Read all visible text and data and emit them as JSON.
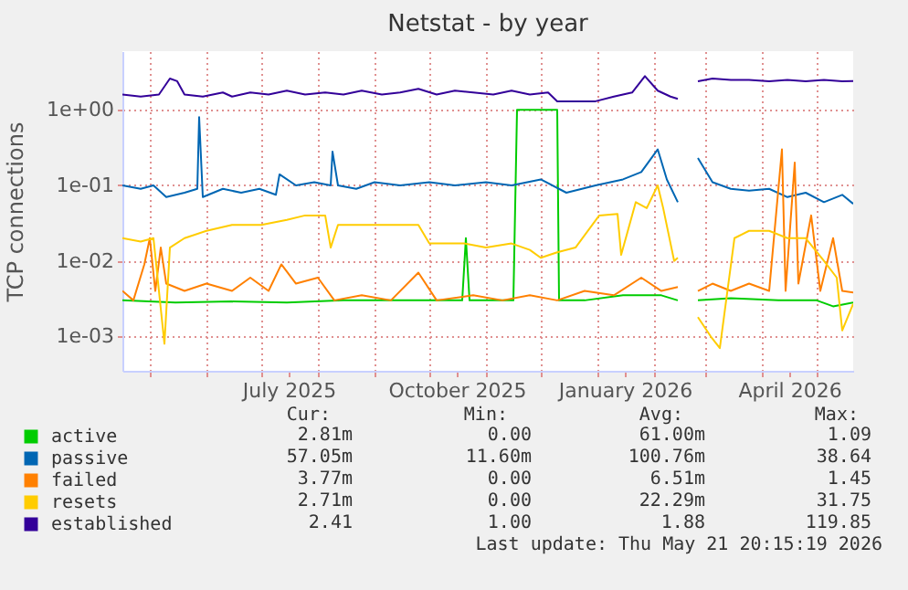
{
  "chart_data": {
    "type": "line",
    "title": "Netstat - by year",
    "ylabel": "TCP connections",
    "log": "y",
    "grid": true,
    "legend": "bottom left",
    "marker": "none",
    "line_style": "solid",
    "xlim": [
      "2025-04-16",
      "2026-05-21"
    ],
    "xticks": [
      {
        "value": "2025-05-01",
        "label": null
      },
      {
        "value": "2025-06-01",
        "label": null
      },
      {
        "value": "2025-07-01",
        "label": null
      },
      {
        "value": "2025-07-16",
        "label": "July 2025"
      },
      {
        "value": "2025-08-01",
        "label": null
      },
      {
        "value": "2025-09-01",
        "label": null
      },
      {
        "value": "2025-10-01",
        "label": null
      },
      {
        "value": "2025-10-16",
        "label": "October 2025"
      },
      {
        "value": "2025-11-01",
        "label": null
      },
      {
        "value": "2025-12-01",
        "label": null
      },
      {
        "value": "2026-01-01",
        "label": null
      },
      {
        "value": "2026-01-16",
        "label": "January 2026"
      },
      {
        "value": "2026-02-01",
        "label": null
      },
      {
        "value": "2026-03-01",
        "label": null
      },
      {
        "value": "2026-04-01",
        "label": null
      },
      {
        "value": "2026-04-16",
        "label": "April 2026"
      },
      {
        "value": "2026-05-01",
        "label": null
      }
    ],
    "ylim": [
      0.00035,
      6
    ],
    "yticks": [
      {
        "value": 0.001,
        "label": "1e-03"
      },
      {
        "value": 0.01,
        "label": "1e-02"
      },
      {
        "value": 0.1,
        "label": "1e-01"
      },
      {
        "value": 1,
        "label": "1e+00"
      }
    ],
    "series": [
      {
        "name": "active",
        "color": "#00cc00",
        "x": [
          "2025-04-16",
          "2025-05-15",
          "2025-06-15",
          "2025-07-15",
          "2025-08-15",
          "2025-09-10",
          "2025-10-19",
          "2025-10-21",
          "2025-10-23",
          "2025-11-16",
          "2025-11-18",
          "2025-12-10",
          "2025-12-11",
          "2025-12-25",
          "2026-01-15",
          "2026-02-05",
          "2026-02-14",
          "2026-02-20",
          "2026-02-25",
          "2026-03-15",
          "2026-04-10",
          "2026-05-01",
          "2026-05-10",
          "2026-05-21"
        ],
        "values": [
          0.003,
          0.0028,
          0.0029,
          0.0028,
          0.003,
          0.003,
          0.003,
          0.02,
          0.003,
          0.003,
          1.0,
          1.0,
          0.003,
          0.003,
          0.0035,
          0.0035,
          0.003,
          null,
          0.003,
          0.0032,
          0.003,
          0.003,
          0.0025,
          0.0028
        ]
      },
      {
        "name": "passive",
        "color": "#0066b3",
        "x": [
          "2025-04-16",
          "2025-04-26",
          "2025-05-03",
          "2025-05-10",
          "2025-05-20",
          "2025-05-27",
          "2025-05-28",
          "2025-05-30",
          "2025-06-10",
          "2025-06-20",
          "2025-06-30",
          "2025-07-09",
          "2025-07-11",
          "2025-07-20",
          "2025-07-30",
          "2025-08-08",
          "2025-08-09",
          "2025-08-12",
          "2025-08-22",
          "2025-09-01",
          "2025-09-15",
          "2025-10-01",
          "2025-10-15",
          "2025-11-01",
          "2025-11-15",
          "2025-12-01",
          "2025-12-15",
          "2025-12-31",
          "2026-01-15",
          "2026-01-25",
          "2026-02-03",
          "2026-02-08",
          "2026-02-14",
          "2026-02-20",
          "2026-02-25",
          "2026-03-05",
          "2026-03-15",
          "2026-03-25",
          "2026-04-05",
          "2026-04-15",
          "2026-04-25",
          "2026-05-05",
          "2026-05-15",
          "2026-05-21"
        ],
        "values": [
          0.1,
          0.09,
          0.1,
          0.07,
          0.08,
          0.09,
          0.8,
          0.07,
          0.09,
          0.08,
          0.09,
          0.075,
          0.14,
          0.1,
          0.11,
          0.1,
          0.28,
          0.1,
          0.09,
          0.11,
          0.1,
          0.11,
          0.1,
          0.11,
          0.1,
          0.12,
          0.08,
          0.1,
          0.12,
          0.15,
          0.3,
          0.12,
          0.06,
          null,
          0.23,
          0.11,
          0.09,
          0.085,
          0.09,
          0.07,
          0.08,
          0.06,
          0.075,
          0.057
        ]
      },
      {
        "name": "failed",
        "color": "#ff8000",
        "x": [
          "2025-04-16",
          "2025-04-22",
          "2025-04-28",
          "2025-05-01",
          "2025-05-04",
          "2025-05-07",
          "2025-05-10",
          "2025-05-20",
          "2025-06-01",
          "2025-06-15",
          "2025-06-25",
          "2025-07-05",
          "2025-07-12",
          "2025-07-20",
          "2025-08-01",
          "2025-08-10",
          "2025-08-25",
          "2025-09-10",
          "2025-09-25",
          "2025-10-05",
          "2025-10-25",
          "2025-11-10",
          "2025-11-25",
          "2025-12-10",
          "2025-12-25",
          "2026-01-10",
          "2026-01-25",
          "2026-02-05",
          "2026-02-14",
          "2026-02-20",
          "2026-02-25",
          "2026-03-05",
          "2026-03-15",
          "2026-03-25",
          "2026-04-05",
          "2026-04-12",
          "2026-04-14",
          "2026-04-19",
          "2026-04-21",
          "2026-04-28",
          "2026-05-03",
          "2026-05-10",
          "2026-05-15",
          "2026-05-21"
        ],
        "values": [
          0.004,
          0.003,
          0.009,
          0.02,
          0.004,
          0.015,
          0.005,
          0.004,
          0.005,
          0.004,
          0.006,
          0.004,
          0.009,
          0.005,
          0.006,
          0.003,
          0.0035,
          0.003,
          0.007,
          0.003,
          0.0035,
          0.003,
          0.0035,
          0.003,
          0.004,
          0.0035,
          0.006,
          0.004,
          0.0045,
          null,
          0.004,
          0.005,
          0.004,
          0.005,
          0.004,
          0.3,
          0.004,
          0.2,
          0.005,
          0.04,
          0.004,
          0.02,
          0.004,
          0.0038
        ]
      },
      {
        "name": "resets",
        "color": "#ffcc00",
        "x": [
          "2025-04-16",
          "2025-04-26",
          "2025-05-03",
          "2025-05-09",
          "2025-05-12",
          "2025-05-20",
          "2025-06-01",
          "2025-06-15",
          "2025-07-01",
          "2025-07-15",
          "2025-07-25",
          "2025-08-05",
          "2025-08-08",
          "2025-08-12",
          "2025-08-25",
          "2025-09-10",
          "2025-09-25",
          "2025-10-01",
          "2025-10-20",
          "2025-11-01",
          "2025-11-15",
          "2025-11-25",
          "2025-12-01",
          "2025-12-10",
          "2025-12-20",
          "2026-01-02",
          "2026-01-12",
          "2026-01-14",
          "2026-01-22",
          "2026-01-28",
          "2026-02-03",
          "2026-02-06",
          "2026-02-12",
          "2026-02-14",
          "2026-02-20",
          "2026-02-25",
          "2026-03-04",
          "2026-03-09",
          "2026-03-17",
          "2026-03-25",
          "2026-04-05",
          "2026-04-15",
          "2026-04-25",
          "2026-05-05",
          "2026-05-12",
          "2026-05-15",
          "2026-05-21"
        ],
        "values": [
          0.02,
          0.018,
          0.02,
          0.0008,
          0.015,
          0.02,
          0.025,
          0.03,
          0.03,
          0.035,
          0.04,
          0.04,
          0.015,
          0.03,
          0.03,
          0.03,
          0.03,
          0.017,
          0.017,
          0.015,
          0.017,
          0.014,
          0.011,
          0.013,
          0.015,
          0.04,
          0.042,
          0.012,
          0.06,
          0.05,
          0.1,
          0.05,
          0.01,
          0.011,
          null,
          0.0018,
          0.001,
          0.0007,
          0.02,
          0.025,
          0.025,
          0.02,
          0.02,
          0.01,
          0.006,
          0.0012,
          0.0027
        ]
      },
      {
        "name": "established",
        "color": "#330099",
        "x": [
          "2025-04-16",
          "2025-04-26",
          "2025-05-06",
          "2025-05-12",
          "2025-05-16",
          "2025-05-20",
          "2025-05-30",
          "2025-06-10",
          "2025-06-15",
          "2025-06-25",
          "2025-07-05",
          "2025-07-15",
          "2025-07-25",
          "2025-08-05",
          "2025-08-15",
          "2025-08-25",
          "2025-09-05",
          "2025-09-15",
          "2025-09-25",
          "2025-10-05",
          "2025-10-15",
          "2025-10-25",
          "2025-11-05",
          "2025-11-15",
          "2025-11-25",
          "2025-12-05",
          "2025-12-10",
          "2025-12-20",
          "2025-12-31",
          "2026-01-10",
          "2026-01-20",
          "2026-01-27",
          "2026-02-03",
          "2026-02-10",
          "2026-02-14",
          "2026-02-20",
          "2026-02-25",
          "2026-03-05",
          "2026-03-15",
          "2026-03-25",
          "2026-04-05",
          "2026-04-15",
          "2026-04-25",
          "2026-05-05",
          "2026-05-15",
          "2026-05-21"
        ],
        "values": [
          1.6,
          1.5,
          1.6,
          2.6,
          2.4,
          1.6,
          1.5,
          1.7,
          1.5,
          1.7,
          1.6,
          1.8,
          1.6,
          1.7,
          1.6,
          1.8,
          1.6,
          1.7,
          1.9,
          1.6,
          1.8,
          1.7,
          1.6,
          1.8,
          1.6,
          1.7,
          1.3,
          1.3,
          1.3,
          1.5,
          1.7,
          2.8,
          1.8,
          1.5,
          1.4,
          null,
          2.4,
          2.6,
          2.5,
          2.5,
          2.4,
          2.5,
          2.4,
          2.5,
          2.4,
          2.41
        ]
      }
    ],
    "annotations": [
      "Cur:",
      "Min:",
      "Avg:",
      "Max:",
      "2.81m",
      "0.00",
      "61.00m",
      "1.09",
      "57.05m",
      "11.60m",
      "100.76m",
      "38.64",
      "3.77m",
      "0.00",
      "6.51m",
      "1.45",
      "2.71m",
      "0.00",
      "22.29m",
      "31.75",
      "2.41",
      "1.00",
      "1.88",
      "119.85",
      "Last update: Thu May 21 20:15:19 2026"
    ]
  }
}
